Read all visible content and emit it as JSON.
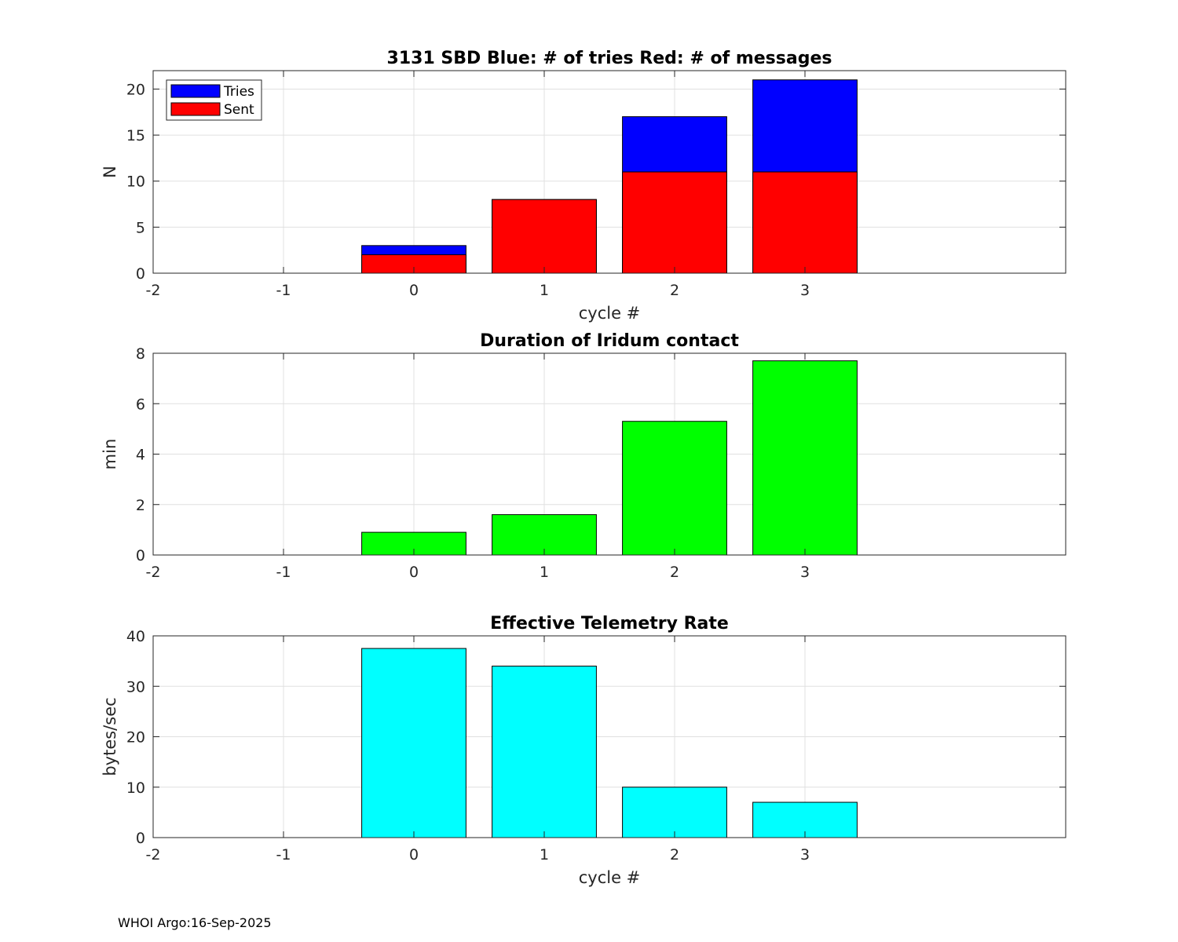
{
  "footer": "WHOI Argo:16-Sep-2025",
  "colors": {
    "tries": "#0000ff",
    "sent": "#ff0000",
    "duration": "#00ff00",
    "rate": "#00ffff",
    "grid": "#e0e0e0",
    "axis": "#262626"
  },
  "chart_data": [
    {
      "type": "bar",
      "title": "3131 SBD  Blue: # of tries   Red: # of messages",
      "xlabel": "cycle #",
      "ylabel": "N",
      "xlim": [
        -2,
        5
      ],
      "ylim": [
        0,
        22
      ],
      "xticks": [
        -2,
        -1,
        0,
        1,
        2,
        3
      ],
      "yticks": [
        0,
        5,
        10,
        15,
        20
      ],
      "x": [
        0,
        1,
        2,
        3
      ],
      "grid": true,
      "legend_position": "top-left",
      "series": [
        {
          "name": "Tries",
          "color_key": "tries",
          "values": [
            3,
            8,
            17,
            21
          ]
        },
        {
          "name": "Sent",
          "color_key": "sent",
          "values": [
            2,
            8,
            11,
            11
          ]
        }
      ]
    },
    {
      "type": "bar",
      "title": "Duration of Iridum contact",
      "xlabel": "",
      "ylabel": "min",
      "xlim": [
        -2,
        5
      ],
      "ylim": [
        0,
        8
      ],
      "xticks": [
        -2,
        -1,
        0,
        1,
        2,
        3
      ],
      "yticks": [
        0,
        2,
        4,
        6,
        8
      ],
      "x": [
        0,
        1,
        2,
        3
      ],
      "grid": true,
      "series": [
        {
          "name": "Duration",
          "color_key": "duration",
          "values": [
            0.9,
            1.6,
            5.3,
            7.7
          ]
        }
      ]
    },
    {
      "type": "bar",
      "title": "Effective Telemetry Rate",
      "xlabel": "cycle #",
      "ylabel": "bytes/sec",
      "xlim": [
        -2,
        5
      ],
      "ylim": [
        0,
        40
      ],
      "xticks": [
        -2,
        -1,
        0,
        1,
        2,
        3
      ],
      "yticks": [
        0,
        10,
        20,
        30,
        40
      ],
      "x": [
        0,
        1,
        2,
        3
      ],
      "grid": true,
      "series": [
        {
          "name": "Rate",
          "color_key": "rate",
          "values": [
            37.5,
            34,
            10,
            7
          ]
        }
      ]
    }
  ]
}
